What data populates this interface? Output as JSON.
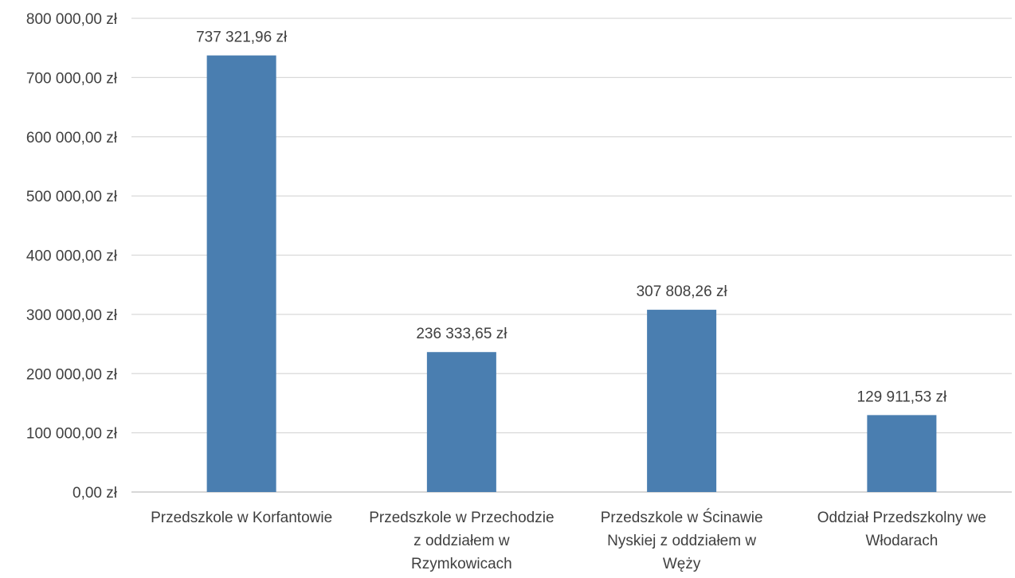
{
  "chart_data": {
    "type": "bar",
    "title": "",
    "xlabel": "",
    "ylabel": "",
    "categories": [
      [
        "Przedszkole w Korfantowie"
      ],
      [
        "Przedszkole w Przechodzie",
        "z oddziałem w",
        "Rzymkowicach"
      ],
      [
        "Przedszkole w Ścinawie",
        "Nyskiej z oddziałem w",
        "Węży"
      ],
      [
        "Oddział Przedszkolny we",
        "Włodarach"
      ]
    ],
    "values": [
      737321.96,
      236333.65,
      307808.26,
      129911.53
    ],
    "value_labels": [
      "737 321,96 zł",
      "236 333,65 zł",
      "307 808,26 zł",
      "129 911,53 zł"
    ],
    "ylim": [
      0,
      800000
    ],
    "y_ticks": [
      0,
      100000,
      200000,
      300000,
      400000,
      500000,
      600000,
      700000,
      800000
    ],
    "y_tick_labels": [
      "0,00 zł",
      "100 000,00 zł",
      "200 000,00 zł",
      "300 000,00 zł",
      "400 000,00 zł",
      "500 000,00 zł",
      "600 000,00 zł",
      "700 000,00 zł",
      "800 000,00 zł"
    ],
    "grid": true,
    "legend": "none",
    "colors": {
      "bar": "#4A7EB0",
      "grid": "#D9D9D9",
      "axis": "#BFBFBF",
      "text": "#404040"
    }
  }
}
